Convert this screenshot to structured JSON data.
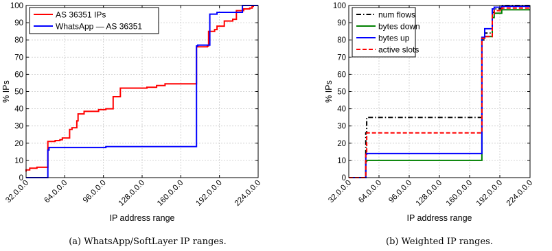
{
  "chart_data": [
    {
      "type": "line",
      "caption": "(a) WhatsApp/SoftLayer IP ranges.",
      "xlabel": "IP address range",
      "ylabel": "% IPs",
      "xlim": [
        32,
        224
      ],
      "ylim": [
        0,
        100
      ],
      "x_ticks": [
        32,
        64,
        96,
        128,
        160,
        192,
        224
      ],
      "x_tick_labels": [
        "32.0.0.0",
        "64.0.0.0",
        "96.0.0.0",
        "128.0.0.0",
        "160.0.0.0",
        "192.0.0.0",
        "224.0.0.0"
      ],
      "y_ticks": [
        0,
        10,
        20,
        30,
        40,
        50,
        60,
        70,
        80,
        90,
        100
      ],
      "grid": true,
      "legend_position": "top-left",
      "series": [
        {
          "name": "AS 36351 IPs",
          "color": "#ff0000",
          "style": "solid",
          "x": [
            32,
            32,
            35,
            35,
            41,
            41,
            42,
            42,
            50,
            50,
            56,
            56,
            60,
            60,
            62,
            62,
            68,
            68,
            70,
            70,
            74,
            74,
            75,
            75,
            80,
            80,
            92,
            92,
            98,
            98,
            104,
            104,
            110,
            110,
            132,
            132,
            140,
            140,
            147,
            147,
            173,
            173,
            182,
            182,
            183,
            183,
            188,
            188,
            190,
            190,
            196,
            196,
            203,
            203,
            206,
            206,
            212,
            212,
            217,
            217,
            219,
            219,
            220,
            220,
            224
          ],
          "y": [
            3.5,
            4.5,
            4.5,
            5.5,
            5.5,
            6,
            6,
            6,
            6,
            21,
            21,
            21.5,
            21.5,
            22,
            22,
            23,
            23,
            28,
            28,
            29,
            29,
            33,
            33,
            37,
            37,
            38.5,
            38.5,
            39.5,
            39.5,
            40,
            40,
            47,
            47,
            52,
            52,
            52.5,
            52.5,
            53.5,
            53.5,
            54.5,
            54.5,
            76,
            76,
            76.5,
            76.5,
            85,
            85,
            86,
            86,
            88,
            88,
            91,
            91,
            92,
            92,
            97,
            97,
            98,
            98,
            98.5,
            98.5,
            99.5,
            99.5,
            100,
            100
          ]
        },
        {
          "name": "WhatsApp — AS 36351",
          "color": "#0000ff",
          "style": "solid",
          "x": [
            32,
            50,
            50,
            51,
            51,
            98,
            98,
            173,
            173,
            174,
            174,
            184,
            184,
            190,
            190,
            211,
            211,
            224
          ],
          "y": [
            0,
            0,
            16,
            16,
            17.5,
            17.5,
            18,
            18,
            76.5,
            76.5,
            77,
            77,
            95,
            95,
            96,
            96,
            100,
            100
          ]
        }
      ]
    },
    {
      "type": "line",
      "caption": "(b) Weighted IP ranges.",
      "xlabel": "IP address range",
      "ylabel": "% IPs",
      "xlim": [
        32,
        224
      ],
      "ylim": [
        0,
        100
      ],
      "x_ticks": [
        32,
        64,
        96,
        128,
        160,
        192,
        224
      ],
      "x_tick_labels": [
        "32.0.0.0",
        "64.0.0.0",
        "96.0.0.0",
        "128.0.0.0",
        "160.0.0.0",
        "192.0.0.0",
        "224.0.0.0"
      ],
      "y_ticks": [
        0,
        10,
        20,
        30,
        40,
        50,
        60,
        70,
        80,
        90,
        100
      ],
      "grid": true,
      "legend_position": "top-left",
      "series": [
        {
          "name": "num flows",
          "color": "#000000",
          "style": "dashdot",
          "x": [
            32,
            50,
            50,
            51,
            51,
            173,
            173,
            176,
            176,
            184,
            184,
            186,
            186,
            194,
            194,
            224
          ],
          "y": [
            0,
            0,
            26,
            26,
            35,
            35,
            80,
            80,
            84,
            84,
            96,
            96,
            98,
            98,
            100,
            100
          ]
        },
        {
          "name": "bytes down",
          "color": "#008000",
          "style": "solid",
          "x": [
            32,
            50,
            50,
            51,
            51,
            173,
            173,
            176,
            176,
            184,
            184,
            186,
            186,
            194,
            194,
            224
          ],
          "y": [
            0,
            0,
            9.5,
            9.5,
            10,
            10,
            81,
            81,
            82,
            82,
            93,
            93,
            95.5,
            95.5,
            97.5,
            97.5
          ]
        },
        {
          "name": "bytes up",
          "color": "#0000ff",
          "style": "solid",
          "x": [
            32,
            50,
            50,
            51,
            51,
            173,
            173,
            176,
            176,
            184,
            184,
            186,
            186,
            194,
            194,
            224
          ],
          "y": [
            0,
            0,
            13.5,
            13.5,
            14,
            14,
            81.5,
            81.5,
            86.5,
            86.5,
            98,
            98,
            99,
            99,
            99.5,
            99.5
          ]
        },
        {
          "name": "active slots",
          "color": "#ff0000",
          "style": "dashed",
          "x": [
            32,
            50,
            50,
            51,
            51,
            173,
            173,
            176,
            176,
            184,
            184,
            186,
            186,
            194,
            194,
            224
          ],
          "y": [
            0,
            0,
            15,
            15,
            26,
            26,
            81,
            81,
            82,
            82,
            95,
            95,
            97,
            97,
            98.5,
            98.5
          ]
        }
      ]
    }
  ]
}
